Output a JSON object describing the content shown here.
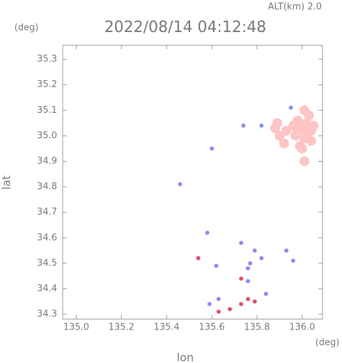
{
  "chart_data": {
    "type": "scatter",
    "title": "2022/08/14 04:12:48",
    "subtitle": "ALT(km) 2.0",
    "y_unit": "(deg)",
    "x_unit": "(deg)",
    "xlabel": "lon",
    "ylabel": "lat",
    "xlim": [
      134.94,
      136.09
    ],
    "ylim": [
      34.281,
      35.355
    ],
    "xticks": [
      {
        "value": 135.0,
        "label": "135.0"
      },
      {
        "value": 135.2,
        "label": "135.2"
      },
      {
        "value": 135.4,
        "label": "135.4"
      },
      {
        "value": 135.6,
        "label": "135.6"
      },
      {
        "value": 135.8,
        "label": "135.8"
      },
      {
        "value": 136.0,
        "label": "136.0"
      }
    ],
    "yticks": [
      34.3,
      34.4,
      34.5,
      34.6,
      34.7,
      34.8,
      34.9,
      {
        "value": 35.0,
        "label": "35.0"
      },
      35.1,
      35.2,
      35.3
    ],
    "series": [
      {
        "color": "#ffc4c4",
        "x": [
          136.0,
          136.02,
          135.98,
          136.04,
          136.01,
          135.97,
          136.03,
          135.99,
          136.05,
          136.01,
          136.0,
          135.98,
          136.02,
          136.04,
          135.96,
          135.88,
          135.9,
          135.92,
          136.01,
          135.89,
          135.93
        ],
        "y": [
          35.03,
          35.05,
          35.06,
          35.02,
          34.99,
          35.0,
          35.08,
          34.96,
          35.04,
          35.1,
          34.95,
          35.02,
          35.0,
          34.98,
          35.04,
          35.03,
          35.0,
          34.97,
          34.9,
          35.05,
          35.02
        ]
      },
      {
        "color": "#8c8cf0",
        "x": [
          135.6,
          135.46,
          135.58,
          135.62,
          135.73,
          135.79,
          135.76,
          135.76,
          135.82,
          135.84,
          135.93,
          135.96,
          135.59,
          135.63,
          135.74,
          135.82,
          135.95,
          135.77
        ],
        "y": [
          34.95,
          34.81,
          34.62,
          34.49,
          34.58,
          34.55,
          34.48,
          34.43,
          34.52,
          34.38,
          34.55,
          34.51,
          34.34,
          34.36,
          35.04,
          35.04,
          35.11,
          34.5
        ]
      },
      {
        "color": "#e0506a",
        "x": [
          135.54,
          135.63,
          135.68,
          135.73,
          135.76,
          135.73,
          135.79
        ],
        "y": [
          34.52,
          34.31,
          34.32,
          34.34,
          34.36,
          34.44,
          34.35
        ]
      }
    ]
  }
}
